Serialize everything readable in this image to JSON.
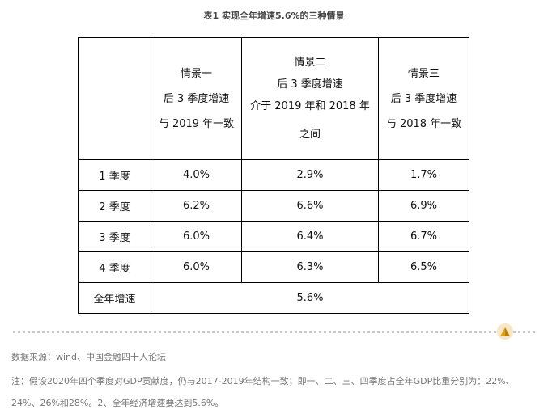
{
  "title": "表1 实现全年增速5.6%的三种情景",
  "table": {
    "headers": [
      {
        "lines": []
      },
      {
        "lines": [
          "情景一",
          "后 3 季度增速",
          "与 2019 年一致"
        ]
      },
      {
        "lines": [
          "情景二",
          "后 3 季度增速",
          "介于 2019 年和 2018 年",
          "之间"
        ]
      },
      {
        "lines": [
          "情景三",
          "后 3 季度增速",
          "与 2018 年一致"
        ]
      }
    ],
    "rows": [
      {
        "label": "1 季度",
        "values": [
          "4.0%",
          "2.9%",
          "1.7%"
        ]
      },
      {
        "label": "2 季度",
        "values": [
          "6.2%",
          "6.6%",
          "6.9%"
        ]
      },
      {
        "label": "3 季度",
        "values": [
          "6.0%",
          "6.4%",
          "6.7%"
        ]
      },
      {
        "label": "4 季度",
        "values": [
          "6.0%",
          "6.3%",
          "6.5%"
        ]
      }
    ],
    "total": {
      "label": "全年增速",
      "value": "5.6%"
    }
  },
  "source": "数据来源：wind、中国金融四十人论坛",
  "note": "注：假设2020年四个季度对GDP贡献度，仍与2017-2019年结构一致；即一、二、三、四季度占全年GDP比重分别为：22%、24%、26%和28%。2、全年经济增速要达到5.6%。",
  "colors": {
    "text": "#222222",
    "muted": "#777777",
    "border": "#000000",
    "divider": "#c9c9c9",
    "badge": "#f7e7c4",
    "badge_icon": "#d9a21b"
  },
  "icons": {
    "divider_badge": "pyramid-icon"
  }
}
